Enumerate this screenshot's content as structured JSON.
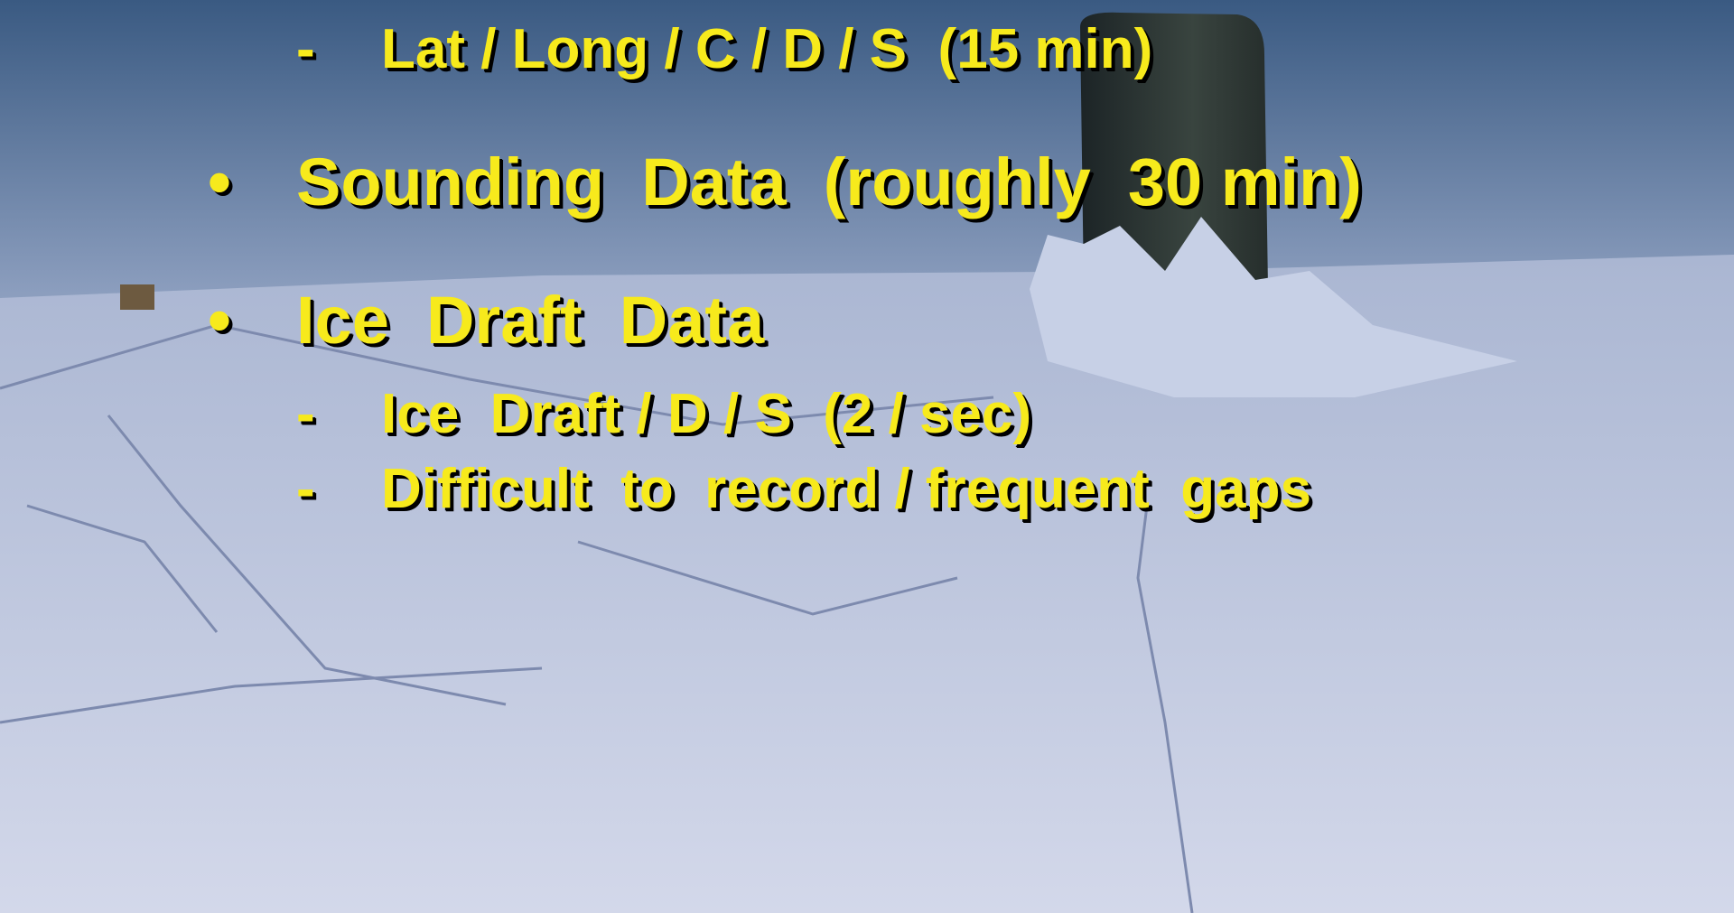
{
  "items": [
    {
      "marker": "-",
      "text": "Lat / Long / C / D / S  (15 min)"
    },
    {
      "marker": "•",
      "text": "Sounding  Data  (roughly  30 min)"
    },
    {
      "marker": "•",
      "text": "Ice  Draft  Data"
    },
    {
      "marker": "-",
      "text": "Ice  Draft / D / S  (2 / sec)"
    },
    {
      "marker": "-",
      "text": "Difficult  to  record / frequent  gaps"
    }
  ]
}
